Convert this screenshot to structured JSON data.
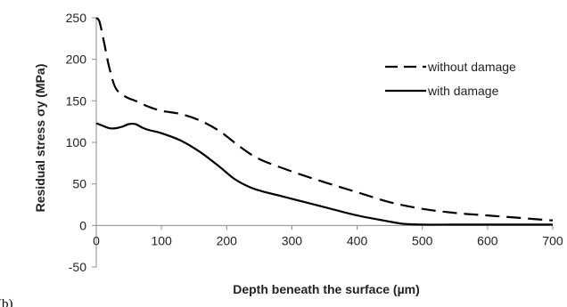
{
  "panel_label": "(b)",
  "chart_data": {
    "type": "line",
    "title": "",
    "xlabel": "Depth beneath the surface (µm)",
    "ylabel": "Residual stress σy (MPa)",
    "xlim": [
      0,
      700
    ],
    "ylim": [
      -50,
      250
    ],
    "xticks": [
      0,
      100,
      200,
      300,
      400,
      500,
      600,
      700
    ],
    "yticks": [
      -50,
      0,
      50,
      100,
      150,
      200,
      250
    ],
    "grid": false,
    "legend_position": "top-right",
    "series": [
      {
        "name": "without damage",
        "style": "dashed",
        "color": "#000000",
        "x": [
          0,
          5,
          12,
          20,
          30,
          45,
          60,
          80,
          100,
          130,
          160,
          190,
          220,
          250,
          300,
          350,
          400,
          450,
          500,
          550,
          600,
          650,
          700
        ],
        "y": [
          250,
          245,
          220,
          190,
          165,
          155,
          150,
          143,
          138,
          134,
          126,
          113,
          95,
          80,
          65,
          52,
          40,
          28,
          20,
          15,
          12,
          9,
          6
        ]
      },
      {
        "name": "with damage",
        "style": "solid",
        "color": "#000000",
        "x": [
          0,
          10,
          20,
          30,
          40,
          50,
          60,
          70,
          80,
          100,
          130,
          160,
          190,
          210,
          230,
          250,
          280,
          320,
          360,
          400,
          440,
          470,
          500,
          550,
          600,
          650,
          700
        ],
        "y": [
          123,
          120,
          117,
          117,
          119,
          122,
          122,
          118,
          115,
          111,
          102,
          88,
          70,
          57,
          48,
          42,
          36,
          28,
          20,
          12,
          6,
          2,
          1,
          1,
          1,
          1,
          1
        ]
      }
    ]
  }
}
